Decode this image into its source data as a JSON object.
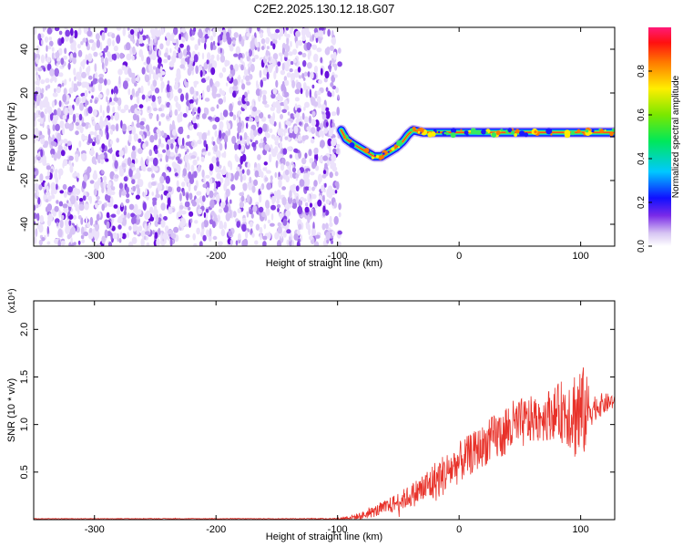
{
  "title": "C2E2.2025.130.12.18.G07",
  "chart_data": [
    {
      "type": "heatmap",
      "title": "C2E2.2025.130.12.18.G07",
      "xlabel": "Height of straight line (km)",
      "ylabel": "Frequency (Hz)",
      "xlim": [
        -350,
        128
      ],
      "ylim": [
        -50,
        50
      ],
      "x_ticks": [
        -300,
        -200,
        -100,
        0,
        100
      ],
      "y_ticks": [
        -40,
        -20,
        0,
        20,
        40
      ],
      "noise_region_x": [
        -350,
        -98
      ],
      "signal_track": {
        "x": [
          -97,
          -93,
          -88,
          -82,
          -76,
          -70,
          -64,
          -58,
          -52,
          -46,
          -42,
          -38,
          -30,
          -20,
          -10,
          0,
          10,
          20,
          30,
          40,
          50,
          60,
          70,
          80,
          90,
          100,
          110,
          120,
          128
        ],
        "y": [
          3,
          -1,
          -3,
          -5,
          -7,
          -9,
          -9,
          -7,
          -5,
          -2,
          1,
          3,
          2,
          2,
          2,
          2,
          2,
          2,
          2,
          2,
          2,
          2,
          2,
          2,
          2,
          2,
          2,
          2,
          2
        ]
      },
      "colorbar": {
        "label": "Normalized spectral amplitude",
        "range": [
          0,
          1
        ],
        "ticks": [
          0.0,
          0.2,
          0.4,
          0.6,
          0.8
        ]
      }
    },
    {
      "type": "line",
      "xlabel": "Height of straight line (km)",
      "ylabel": "SNR (10 * v/v)",
      "y_multiplier": "(x10⁴)",
      "xlim": [
        -350,
        128
      ],
      "ylim": [
        0,
        2.3
      ],
      "x_ticks": [
        -300,
        -200,
        -100,
        0,
        100
      ],
      "y_ticks": [
        0.5,
        1.0,
        1.5,
        2.0
      ],
      "series_color": "#e8322a",
      "envelope": {
        "x": [
          -350,
          -120,
          -98,
          -80,
          -60,
          -40,
          -20,
          0,
          20,
          40,
          60,
          80,
          90,
          100,
          110,
          128
        ],
        "mean": [
          0.01,
          0.01,
          0.01,
          0.04,
          0.13,
          0.25,
          0.4,
          0.6,
          0.78,
          0.95,
          1.05,
          1.13,
          1.15,
          1.1,
          1.18,
          1.25
        ],
        "amplitude": [
          0.003,
          0.004,
          0.01,
          0.04,
          0.08,
          0.12,
          0.22,
          0.22,
          0.22,
          0.3,
          0.25,
          0.28,
          0.4,
          0.6,
          0.15,
          0.08
        ]
      }
    }
  ]
}
